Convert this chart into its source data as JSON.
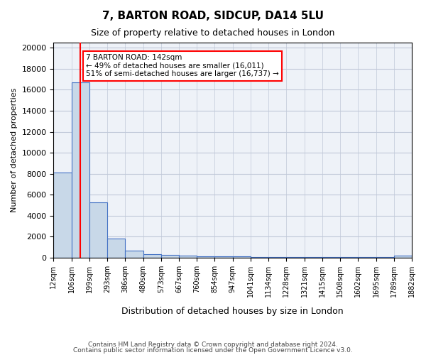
{
  "title": "7, BARTON ROAD, SIDCUP, DA14 5LU",
  "subtitle": "Size of property relative to detached houses in London",
  "xlabel": "Distribution of detached houses by size in London",
  "ylabel": "Number of detached properties",
  "footnote1": "Contains HM Land Registry data © Crown copyright and database right 2024.",
  "footnote2": "Contains public sector information licensed under the Open Government Licence v3.0.",
  "bin_labels": [
    "12sqm",
    "106sqm",
    "199sqm",
    "293sqm",
    "386sqm",
    "480sqm",
    "573sqm",
    "667sqm",
    "760sqm",
    "854sqm",
    "947sqm",
    "1041sqm",
    "1134sqm",
    "1228sqm",
    "1321sqm",
    "1415sqm",
    "1508sqm",
    "1602sqm",
    "1695sqm",
    "1789sqm",
    "1882sqm"
  ],
  "bar_values": [
    8100,
    16700,
    5300,
    1800,
    700,
    320,
    280,
    200,
    150,
    120,
    100,
    80,
    70,
    60,
    50,
    45,
    40,
    35,
    30,
    200
  ],
  "bar_color": "#c8d8e8",
  "bar_edge_color": "#4472c4",
  "red_line_bin": 1,
  "annotation_text": "7 BARTON ROAD: 142sqm\n← 49% of detached houses are smaller (16,011)\n51% of semi-detached houses are larger (16,737) →",
  "annotation_box_color": "white",
  "annotation_box_edge_color": "red",
  "grid_color": "#c0c8d8",
  "background_color": "#eef2f8",
  "ylim": [
    0,
    20500
  ],
  "yticks": [
    0,
    2000,
    4000,
    6000,
    8000,
    10000,
    12000,
    14000,
    16000,
    18000,
    20000
  ]
}
